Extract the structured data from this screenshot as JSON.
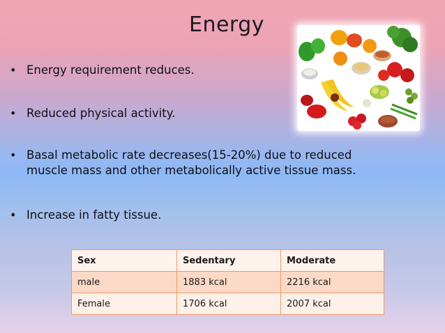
{
  "slide": {
    "title": "Energy",
    "bullets": [
      "Energy requirement reduces.",
      "Reduced physical activity.",
      "Basal metabolic rate decreases(15-20%) due to reduced muscle mass and other metabolically active tissue mass.",
      "Increase in fatty tissue."
    ],
    "bullet_glyph": "•"
  },
  "table": {
    "headers": [
      "Sex",
      "Sedentary",
      "Moderate"
    ],
    "rows": [
      [
        "male",
        "1883 kcal",
        "2216 kcal"
      ],
      [
        "Female",
        "1706  kcal",
        "2007 kcal"
      ]
    ]
  },
  "colors": {
    "table_border": "#ec9b63",
    "row_tinted": "#fbd9c6",
    "row_light": "#fdf0e8"
  }
}
